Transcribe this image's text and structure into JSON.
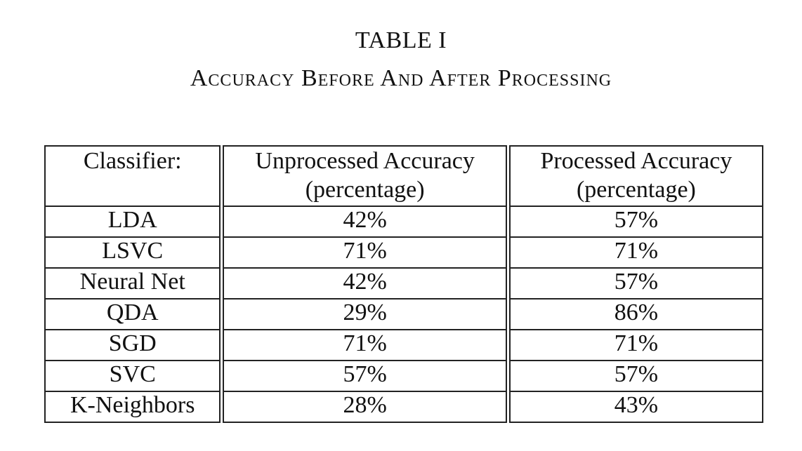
{
  "table_label": "TABLE I",
  "table_caption": "Accuracy Before And After Processing",
  "columns": {
    "classifier": "Classifier:",
    "unprocessed_line1": "Unprocessed Accuracy",
    "unprocessed_line2": "(percentage)",
    "processed_line1": "Processed Accuracy",
    "processed_line2": "(percentage)"
  },
  "rows": [
    {
      "classifier": "LDA",
      "unprocessed": "42%",
      "processed": "57%"
    },
    {
      "classifier": "LSVC",
      "unprocessed": "71%",
      "processed": "71%"
    },
    {
      "classifier": "Neural Net",
      "unprocessed": "42%",
      "processed": "57%"
    },
    {
      "classifier": "QDA",
      "unprocessed": "29%",
      "processed": "86%"
    },
    {
      "classifier": "SGD",
      "unprocessed": "71%",
      "processed": "71%"
    },
    {
      "classifier": "SVC",
      "unprocessed": "57%",
      "processed": "57%"
    },
    {
      "classifier": "K-Neighbors",
      "unprocessed": "28%",
      "processed": "43%"
    }
  ]
}
